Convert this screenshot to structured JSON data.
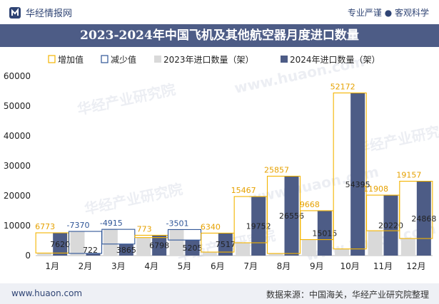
{
  "header": {
    "brand": "华经情报网",
    "tagline": "专业严谨 ● 客观科学"
  },
  "title": "2023-2024年中国飞机及其他航空器月度进口数量",
  "footer": {
    "website": "www.huaon.com",
    "source": "数据来源：中国海关，华经产业研究院整理"
  },
  "watermarks": [
    "华经产业研究院",
    "www.huaon.com"
  ],
  "colors": {
    "bar2023": "#d9d9d9",
    "bar2024": "#4d5c86",
    "increase": "#f4b400",
    "decrease": "#2f5597",
    "title_bg": "#4d5c86"
  },
  "chart_data": {
    "type": "bar",
    "categories": [
      "1月",
      "2月",
      "3月",
      "4月",
      "5月",
      "6月",
      "7月",
      "8月",
      "9月",
      "10月",
      "11月",
      "12月"
    ],
    "series": [
      {
        "name": "2023年进口数量（架）",
        "values": [
          847,
          8092,
          8780,
          6025,
          8706,
          1177,
          4285,
          699,
          5347,
          2223,
          8312,
          5711
        ]
      },
      {
        "name": "2024年进口数量（架）",
        "values": [
          7620,
          722,
          3865,
          6798,
          5205,
          7517,
          19752,
          26556,
          15015,
          54395,
          20220,
          24868
        ]
      }
    ],
    "changes": [
      6773,
      -7370,
      -4915,
      773,
      -3501,
      6340,
      15467,
      25857,
      9668,
      52172,
      11908,
      19157
    ],
    "legend": [
      "增加值",
      "减少值",
      "2023年进口数量（架）",
      "2024年进口数量（架）"
    ],
    "legend_position": "top",
    "ylim": [
      0,
      60000
    ],
    "yticks": [
      0,
      10000,
      20000,
      30000,
      40000,
      50000,
      60000
    ],
    "grid": false
  }
}
